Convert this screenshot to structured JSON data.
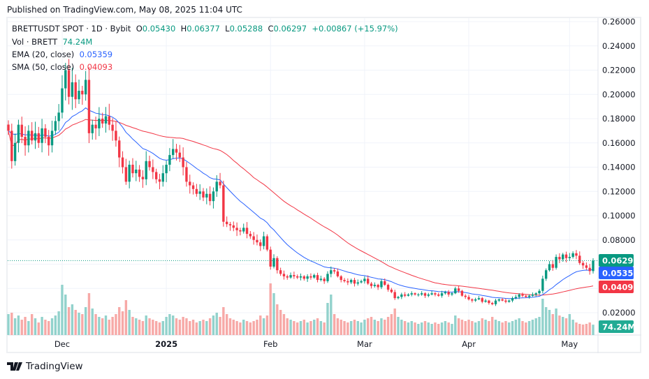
{
  "published": "Published on TradingView.com, May 08, 2025 11:04 UTC",
  "legend": {
    "symbol": "BRETTUSDT SPOT · 1D · Bybit",
    "o_label": "O",
    "o": "0.05430",
    "h_label": "H",
    "h": "0.06377",
    "l_label": "L",
    "l": "0.05288",
    "c_label": "C",
    "c": "0.06297",
    "change": "+0.00867 (+15.97%)",
    "vol_label": "Vol · BRETT",
    "vol": "74.24M",
    "ema_label": "EMA (20, close)",
    "ema": "0.05359",
    "sma_label": "SMA (50, close)",
    "sma": "0.04093"
  },
  "brand": "TradingView",
  "colors": {
    "up": "#089981",
    "down": "#f23645",
    "ema": "#2962ff",
    "sma": "#f23645",
    "vol_up": "#92d2cc",
    "vol_down": "#f7a9a7"
  },
  "chart_data": {
    "type": "candlestick",
    "start_date": "2024-11-15",
    "end_date": "2025-05-08",
    "ylim": [
      0.0,
      0.26
    ],
    "y_ticks": [
      "0.26000",
      "0.24000",
      "0.22000",
      "0.20000",
      "0.18000",
      "0.16000",
      "0.14000",
      "0.12000",
      "0.10000",
      "0.08000",
      "0.02000"
    ],
    "x_ticks": [
      {
        "label": "Dec",
        "date": "2024-12-01"
      },
      {
        "label": "2025",
        "date": "2025-01-01"
      },
      {
        "label": "Feb",
        "date": "2025-02-01"
      },
      {
        "label": "Mar",
        "date": "2025-03-01"
      },
      {
        "label": "Apr",
        "date": "2025-04-01"
      },
      {
        "label": "May",
        "date": "2025-05-01"
      }
    ],
    "price_labels": [
      {
        "name": "close",
        "value": "0.06297",
        "color": "#089981"
      },
      {
        "name": "ema",
        "value": "0.05359",
        "color": "#2962ff"
      },
      {
        "name": "sma",
        "value": "0.04093",
        "color": "#f23645"
      },
      {
        "name": "volume",
        "value": "74.24M",
        "color": "#22ab94"
      }
    ],
    "closes": [
      0.17,
      0.145,
      0.16,
      0.175,
      0.165,
      0.158,
      0.17,
      0.162,
      0.168,
      0.16,
      0.172,
      0.165,
      0.158,
      0.17,
      0.178,
      0.185,
      0.205,
      0.22,
      0.198,
      0.21,
      0.196,
      0.203,
      0.2,
      0.212,
      0.168,
      0.175,
      0.172,
      0.18,
      0.176,
      0.182,
      0.175,
      0.17,
      0.162,
      0.148,
      0.14,
      0.128,
      0.142,
      0.135,
      0.138,
      0.132,
      0.13,
      0.145,
      0.14,
      0.136,
      0.13,
      0.128,
      0.135,
      0.142,
      0.15,
      0.155,
      0.152,
      0.148,
      0.14,
      0.128,
      0.125,
      0.122,
      0.118,
      0.12,
      0.115,
      0.118,
      0.112,
      0.12,
      0.128,
      0.125,
      0.095,
      0.093,
      0.092,
      0.09,
      0.088,
      0.087,
      0.09,
      0.085,
      0.083,
      0.08,
      0.078,
      0.075,
      0.083,
      0.072,
      0.058,
      0.065,
      0.055,
      0.052,
      0.05,
      0.049,
      0.051,
      0.05,
      0.049,
      0.05,
      0.048,
      0.05,
      0.049,
      0.051,
      0.047,
      0.048,
      0.046,
      0.052,
      0.055,
      0.054,
      0.05,
      0.047,
      0.046,
      0.045,
      0.047,
      0.044,
      0.045,
      0.046,
      0.048,
      0.044,
      0.042,
      0.043,
      0.041,
      0.046,
      0.043,
      0.039,
      0.037,
      0.032,
      0.033,
      0.035,
      0.034,
      0.035,
      0.036,
      0.035,
      0.035,
      0.036,
      0.034,
      0.035,
      0.036,
      0.035,
      0.034,
      0.036,
      0.037,
      0.035,
      0.036,
      0.04,
      0.038,
      0.034,
      0.033,
      0.031,
      0.03,
      0.031,
      0.032,
      0.029,
      0.03,
      0.028,
      0.027,
      0.03,
      0.031,
      0.03,
      0.029,
      0.03,
      0.032,
      0.033,
      0.035,
      0.034,
      0.033,
      0.034,
      0.035,
      0.036,
      0.038,
      0.048,
      0.055,
      0.06,
      0.057,
      0.066,
      0.064,
      0.068,
      0.065,
      0.066,
      0.069,
      0.067,
      0.061,
      0.059,
      0.057,
      0.0543,
      0.06297
    ],
    "volumes_m": [
      150,
      160,
      120,
      140,
      110,
      130,
      100,
      150,
      120,
      90,
      130,
      110,
      100,
      120,
      140,
      170,
      360,
      290,
      200,
      220,
      180,
      160,
      150,
      200,
      300,
      190,
      150,
      130,
      120,
      140,
      110,
      130,
      150,
      200,
      170,
      250,
      180,
      130,
      120,
      110,
      100,
      140,
      120,
      110,
      100,
      90,
      100,
      130,
      150,
      140,
      120,
      110,
      130,
      120,
      100,
      110,
      90,
      100,
      110,
      100,
      120,
      140,
      160,
      130,
      200,
      150,
      120,
      110,
      100,
      90,
      110,
      100,
      90,
      100,
      110,
      140,
      120,
      140,
      370,
      300,
      220,
      180,
      150,
      120,
      110,
      100,
      90,
      100,
      110,
      90,
      100,
      110,
      120,
      100,
      90,
      230,
      290,
      150,
      120,
      110,
      100,
      90,
      100,
      110,
      100,
      90,
      110,
      120,
      130,
      110,
      100,
      120,
      110,
      130,
      150,
      190,
      130,
      110,
      100,
      90,
      100,
      90,
      80,
      90,
      100,
      90,
      80,
      90,
      80,
      90,
      100,
      90,
      80,
      140,
      120,
      110,
      100,
      110,
      100,
      90,
      100,
      120,
      110,
      100,
      130,
      110,
      100,
      90,
      100,
      90,
      100,
      110,
      120,
      100,
      90,
      100,
      110,
      120,
      130,
      260,
      200,
      180,
      150,
      190,
      140,
      130,
      120,
      150,
      110,
      90,
      80,
      75,
      80,
      90,
      74.24
    ]
  }
}
